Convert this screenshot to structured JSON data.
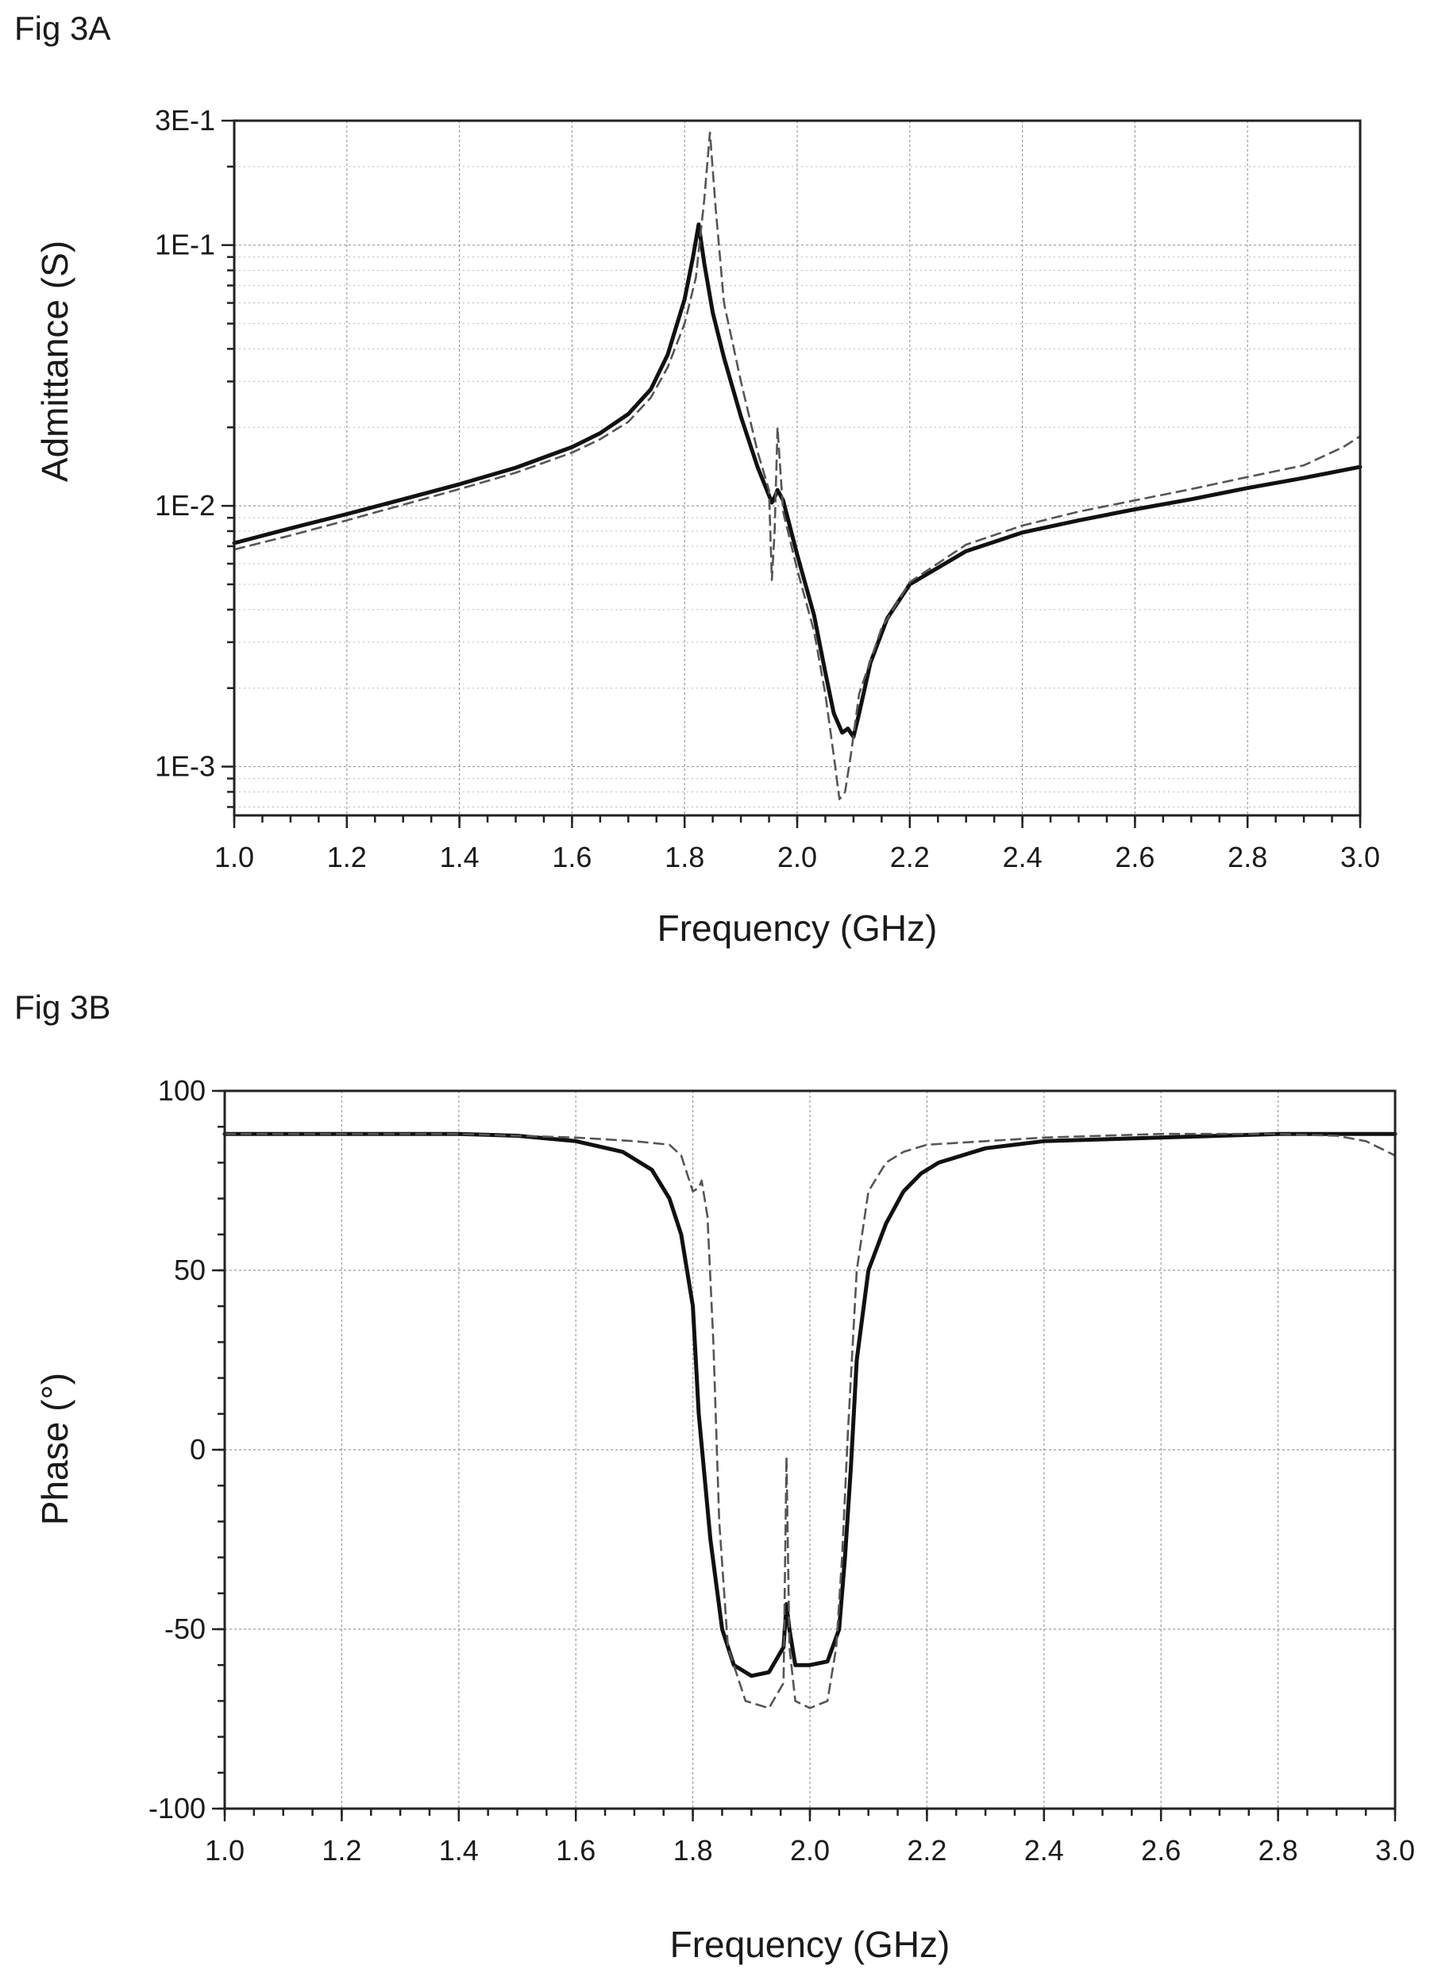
{
  "figures": {
    "a_label": "Fig 3A",
    "b_label": "Fig 3B"
  },
  "chart_data": [
    {
      "type": "line",
      "ylabel": "Admittance (S)",
      "xlabel": "Frequency (GHz)",
      "xlim": [
        1.0,
        3.0
      ],
      "ylim": [
        0.00065,
        0.3
      ],
      "yscale": "log",
      "grid": true,
      "x_ticks": [
        "1.0",
        "1.2",
        "1.4",
        "1.6",
        "1.8",
        "2.0",
        "2.2",
        "2.4",
        "2.6",
        "2.8",
        "3.0"
      ],
      "y_ticks": [
        {
          "value": 0.3,
          "label": "3E-1"
        },
        {
          "value": 0.1,
          "label": "1E-1"
        },
        {
          "value": 0.01,
          "label": "1E-2"
        },
        {
          "value": 0.001,
          "label": "1E-3"
        }
      ],
      "series": [
        {
          "style": "solid",
          "x": [
            1.0,
            1.1,
            1.2,
            1.3,
            1.4,
            1.5,
            1.6,
            1.65,
            1.7,
            1.74,
            1.77,
            1.8,
            1.815,
            1.825,
            1.835,
            1.85,
            1.87,
            1.9,
            1.93,
            1.955,
            1.96,
            1.965,
            1.975,
            2.0,
            2.03,
            2.05,
            2.065,
            2.08,
            2.09,
            2.1,
            2.11,
            2.13,
            2.16,
            2.2,
            2.3,
            2.4,
            2.5,
            2.6,
            2.7,
            2.8,
            2.9,
            3.0
          ],
          "y": [
            0.0072,
            0.0082,
            0.0093,
            0.0106,
            0.0121,
            0.014,
            0.0168,
            0.019,
            0.0225,
            0.028,
            0.038,
            0.062,
            0.09,
            0.12,
            0.085,
            0.055,
            0.037,
            0.022,
            0.014,
            0.0103,
            0.0108,
            0.0115,
            0.0105,
            0.0065,
            0.0038,
            0.0023,
            0.0016,
            0.00135,
            0.0014,
            0.0013,
            0.0016,
            0.0025,
            0.0037,
            0.005,
            0.0067,
            0.0079,
            0.0088,
            0.0097,
            0.0106,
            0.0117,
            0.0128,
            0.0141
          ]
        },
        {
          "style": "dashed",
          "x": [
            1.0,
            1.1,
            1.2,
            1.3,
            1.4,
            1.5,
            1.6,
            1.65,
            1.7,
            1.74,
            1.77,
            1.8,
            1.82,
            1.835,
            1.845,
            1.855,
            1.87,
            1.9,
            1.93,
            1.95,
            1.955,
            1.96,
            1.965,
            1.975,
            2.0,
            2.03,
            2.05,
            2.065,
            2.075,
            2.085,
            2.095,
            2.11,
            2.15,
            2.2,
            2.3,
            2.4,
            2.5,
            2.6,
            2.7,
            2.8,
            2.9,
            2.97,
            3.0
          ],
          "y": [
            0.0068,
            0.0077,
            0.0088,
            0.0101,
            0.0116,
            0.0134,
            0.016,
            0.018,
            0.021,
            0.026,
            0.034,
            0.05,
            0.075,
            0.15,
            0.27,
            0.14,
            0.06,
            0.03,
            0.016,
            0.0115,
            0.0052,
            0.008,
            0.02,
            0.0095,
            0.0057,
            0.0033,
            0.0019,
            0.0011,
            0.00075,
            0.0008,
            0.0011,
            0.0019,
            0.0034,
            0.0051,
            0.0071,
            0.0084,
            0.0095,
            0.0105,
            0.0116,
            0.0129,
            0.0143,
            0.0168,
            0.0185
          ]
        }
      ]
    },
    {
      "type": "line",
      "ylabel": "Phase (°)",
      "xlabel": "Frequency (GHz)",
      "xlim": [
        1.0,
        3.0
      ],
      "ylim": [
        -100,
        100
      ],
      "grid": true,
      "x_ticks": [
        "1.0",
        "1.2",
        "1.4",
        "1.6",
        "1.8",
        "2.0",
        "2.2",
        "2.4",
        "2.6",
        "2.8",
        "3.0"
      ],
      "y_ticks": [
        {
          "value": 100,
          "label": "100"
        },
        {
          "value": 50,
          "label": "50"
        },
        {
          "value": 0,
          "label": "0"
        },
        {
          "value": -50,
          "label": "-50"
        },
        {
          "value": -100,
          "label": "-100"
        }
      ],
      "series": [
        {
          "style": "solid",
          "x": [
            1.0,
            1.2,
            1.4,
            1.5,
            1.6,
            1.68,
            1.73,
            1.76,
            1.78,
            1.8,
            1.81,
            1.83,
            1.85,
            1.87,
            1.9,
            1.93,
            1.955,
            1.96,
            1.965,
            1.975,
            2.0,
            2.03,
            2.05,
            2.06,
            2.07,
            2.08,
            2.1,
            2.13,
            2.16,
            2.19,
            2.22,
            2.3,
            2.4,
            2.6,
            2.8,
            2.9,
            3.0
          ],
          "y": [
            88,
            88,
            88,
            87.5,
            86,
            83,
            78,
            70,
            60,
            40,
            10,
            -25,
            -50,
            -60,
            -63,
            -62,
            -55,
            -43,
            -50,
            -60,
            -60,
            -59,
            -50,
            -30,
            -5,
            25,
            50,
            63,
            72,
            77,
            80,
            84,
            86,
            87,
            88,
            88,
            88
          ]
        },
        {
          "style": "dashed",
          "x": [
            1.0,
            1.2,
            1.4,
            1.5,
            1.6,
            1.7,
            1.76,
            1.78,
            1.8,
            1.81,
            1.815,
            1.825,
            1.835,
            1.845,
            1.86,
            1.89,
            1.93,
            1.955,
            1.96,
            1.965,
            1.975,
            2.0,
            2.03,
            2.045,
            2.055,
            2.065,
            2.08,
            2.1,
            2.13,
            2.16,
            2.2,
            2.3,
            2.4,
            2.6,
            2.8,
            2.9,
            2.95,
            3.0
          ],
          "y": [
            88,
            88,
            88,
            87.5,
            87,
            86,
            85,
            82,
            72,
            73,
            75,
            65,
            30,
            -20,
            -55,
            -70,
            -72,
            -65,
            -2,
            -55,
            -70,
            -72,
            -70,
            -55,
            -30,
            5,
            50,
            72,
            80,
            83,
            85,
            86,
            87,
            88,
            88,
            87.5,
            86,
            82
          ]
        }
      ]
    }
  ]
}
